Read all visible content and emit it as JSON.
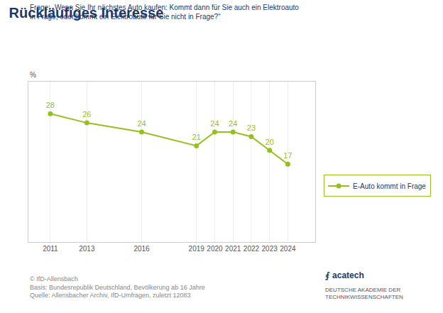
{
  "chart_data": {
    "type": "line",
    "title": "Rückläufiges Interesse",
    "subtitle": [
      "Frage: „Wenn Sie Ihr nächstes Auto kaufen: Kommt dann für Sie auch ein Elektroauto",
      "in Frage, oder kommt ein Elektroauto für Sie nicht in Frage?“"
    ],
    "ylabel": "%",
    "x": [
      2011,
      2013,
      2016,
      2019,
      2020,
      2021,
      2022,
      2023,
      2024
    ],
    "series": [
      {
        "name": "E-Auto kommt in Frage",
        "color": "#95c11f",
        "values": [
          28,
          26,
          24,
          21,
          24,
          24,
          23,
          20,
          17
        ]
      }
    ],
    "xlim": [
      2009.8,
      2025.5
    ],
    "xticks": [
      2011,
      2013,
      2016,
      2019,
      2020,
      2021,
      2022,
      2023,
      2024
    ],
    "ylim": [
      0,
      35
    ],
    "tick_labels": "x",
    "grid": true,
    "legend": "right",
    "data_labels": true,
    "marker": "circle",
    "footer": [
      "© IfD-Allensbach",
      "Basis: Bundesrepublik Deutschland, Bevölkerung ab 16 Jahre",
      "Quelle: Allensbacher Archiv, IfD-Umfragen, zuletzt 12083"
    ],
    "annotations": [
      "⨐ acatech",
      "DEUTSCHE AKADEMIE DER\nTECHNIKWISSENSCHAFTEN"
    ]
  }
}
